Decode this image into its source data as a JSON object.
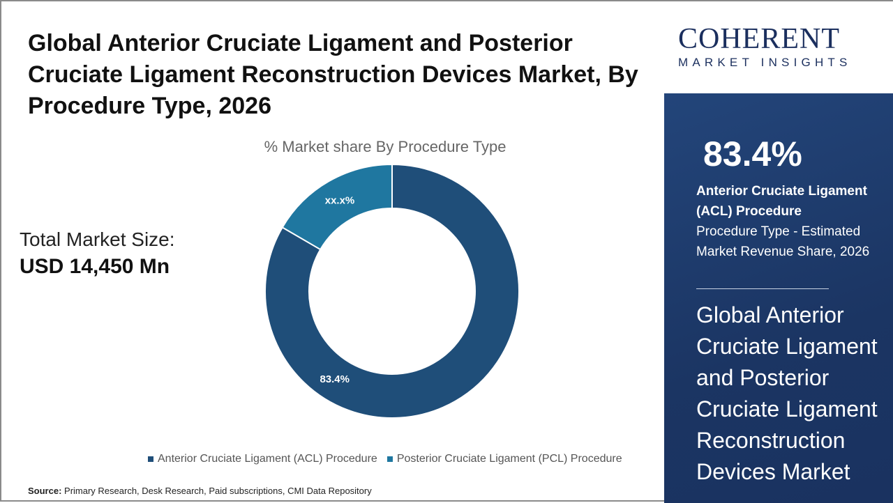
{
  "title": "Global Anterior Cruciate Ligament and Posterior Cruciate Ligament Reconstruction Devices Market, By Procedure Type, 2026",
  "total_label": "Total Market Size:",
  "total_value": "USD 14,450 Mn",
  "source_label": "Source:",
  "source_text": " Primary Research, Desk Research, Paid subscriptions, CMI Data Repository",
  "logo": {
    "main": "COHERENT",
    "sub": "MARKET INSIGHTS"
  },
  "panel": {
    "percent": "83.4%",
    "segment": "Anterior Cruciate Ligament (ACL) Procedure",
    "desc": "Procedure Type - Estimated Market Revenue Share, 2026",
    "market": "Global Anterior Cruciate Ligament and Posterior Cruciate Ligament Reconstruction Devices Market"
  },
  "chart_data": {
    "type": "pie",
    "donut": true,
    "title": "% Market share By Procedure Type",
    "legend_position": "bottom",
    "slices": [
      {
        "name": "Anterior Cruciate Ligament (ACL) Procedure",
        "value": 83.4,
        "label": "83.4%",
        "color": "#1f4e79"
      },
      {
        "name": "Posterior Cruciate Ligament (PCL) Procedure",
        "value": 16.6,
        "label": "xx.x%",
        "color": "#1f77a0"
      }
    ]
  }
}
